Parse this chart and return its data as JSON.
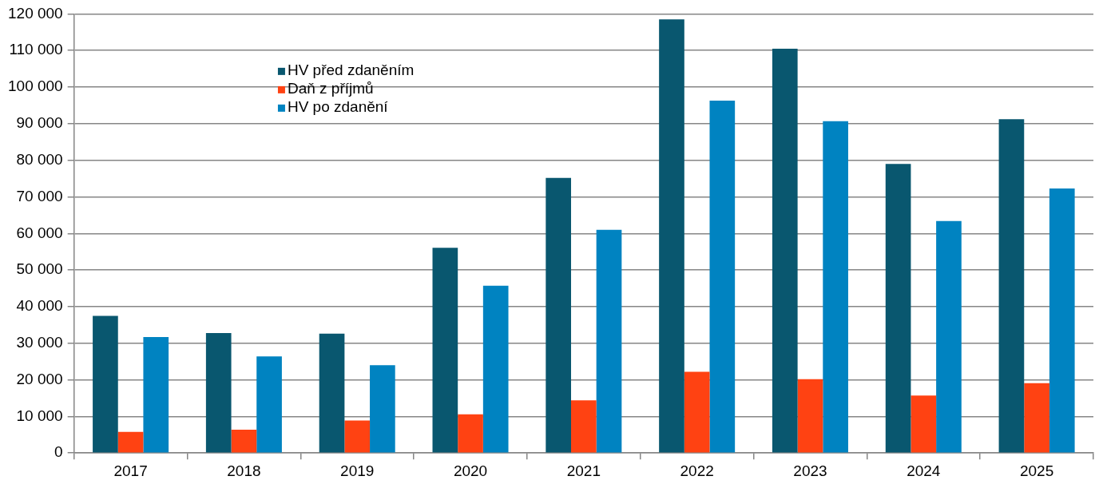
{
  "chart_data": {
    "type": "bar",
    "categories": [
      "2017",
      "2018",
      "2019",
      "2020",
      "2021",
      "2022",
      "2023",
      "2024",
      "2025"
    ],
    "series": [
      {
        "name": "HV před zdaněním",
        "color": "#09576f",
        "values": [
          37500,
          32800,
          32600,
          56100,
          75200,
          118500,
          110500,
          79000,
          91200
        ]
      },
      {
        "name": "Daň z příjmů",
        "color": "#ff4212",
        "values": [
          5800,
          6400,
          8900,
          10600,
          14400,
          22200,
          20200,
          15700,
          19100
        ]
      },
      {
        "name": "HV po zdanění",
        "color": "#0083c1",
        "values": [
          31700,
          26400,
          24000,
          45700,
          61000,
          96300,
          90700,
          63400,
          72300
        ]
      }
    ],
    "ylim": [
      0,
      120000
    ],
    "yticks": [
      0,
      {
        "value": 10000,
        "label": "10 000"
      },
      {
        "value": 20000,
        "label": "20 000"
      },
      {
        "value": 30000,
        "label": "30 000"
      },
      {
        "value": 40000,
        "label": "40 000"
      },
      {
        "value": 50000,
        "label": "50 000"
      },
      {
        "value": 60000,
        "label": "60 000"
      },
      {
        "value": 70000,
        "label": "70 000"
      },
      {
        "value": 80000,
        "label": "80 000"
      },
      {
        "value": 90000,
        "label": "90 000"
      },
      {
        "value": 100000,
        "label": "100 000"
      },
      {
        "value": 110000,
        "label": "110 000"
      },
      {
        "value": 120000,
        "label": "120 000"
      }
    ],
    "grid": "y",
    "legend": "top left"
  }
}
